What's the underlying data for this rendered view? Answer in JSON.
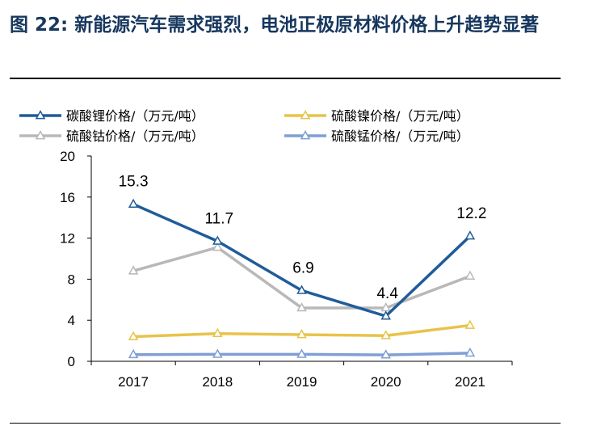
{
  "figure": {
    "title": "图 22: 新能源汽车需求强烈，电池正极原材料价格上升趋势显著"
  },
  "chart_data": {
    "type": "line",
    "categories": [
      "2017",
      "2018",
      "2019",
      "2020",
      "2021"
    ],
    "ylim": [
      0,
      20
    ],
    "yticks": [
      0,
      4,
      8,
      12,
      16,
      20
    ],
    "grid": false,
    "legend_position": "top",
    "series": [
      {
        "name": "碳酸锂价格/（万元/吨）",
        "color": "#1f5c99",
        "values": [
          15.3,
          11.7,
          6.9,
          4.4,
          12.2
        ],
        "labels": [
          "15.3",
          "11.7",
          "6.9",
          "4.4",
          "12.2"
        ]
      },
      {
        "name": "硫酸镍价格/（万元/吨）",
        "color": "#e8c34a",
        "values": [
          2.4,
          2.7,
          2.6,
          2.5,
          3.5
        ]
      },
      {
        "name": "硫酸钴价格/（万元/吨）",
        "color": "#b8b8b8",
        "values": [
          8.8,
          11.1,
          5.2,
          5.2,
          8.3
        ]
      },
      {
        "name": "硫酸锰价格/（万元/吨）",
        "color": "#7f9fd4",
        "values": [
          0.65,
          0.68,
          0.68,
          0.62,
          0.8
        ]
      }
    ]
  }
}
